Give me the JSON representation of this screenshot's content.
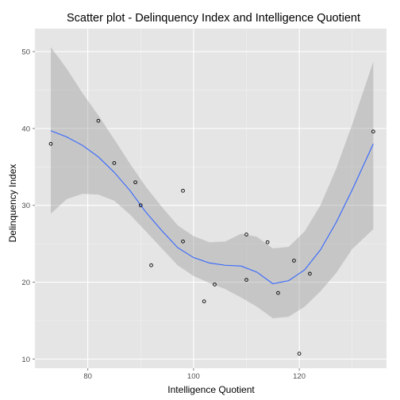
{
  "chart_data": {
    "type": "scatter",
    "title": "Scatter plot - Delinquency Index and Intelligence Quotient",
    "xlabel": "Intelligence Quotient",
    "ylabel": "Delinquency Index",
    "xlim": [
      70,
      136.5
    ],
    "ylim": [
      8.8,
      53
    ],
    "x_ticks": [
      80,
      100,
      120
    ],
    "y_ticks": [
      10,
      20,
      30,
      40,
      50
    ],
    "grid": true,
    "legend": "none",
    "points": [
      {
        "x": 73,
        "y": 38.0
      },
      {
        "x": 82,
        "y": 41.0
      },
      {
        "x": 85,
        "y": 35.5
      },
      {
        "x": 89,
        "y": 33.0
      },
      {
        "x": 90,
        "y": 30.0
      },
      {
        "x": 92,
        "y": 22.2
      },
      {
        "x": 98,
        "y": 31.9
      },
      {
        "x": 98,
        "y": 25.3
      },
      {
        "x": 102,
        "y": 17.5
      },
      {
        "x": 104,
        "y": 19.7
      },
      {
        "x": 110,
        "y": 26.2
      },
      {
        "x": 110,
        "y": 20.3
      },
      {
        "x": 114,
        "y": 25.2
      },
      {
        "x": 116,
        "y": 18.6
      },
      {
        "x": 119,
        "y": 22.8
      },
      {
        "x": 120,
        "y": 10.7
      },
      {
        "x": 122,
        "y": 21.1
      },
      {
        "x": 134,
        "y": 39.6
      }
    ],
    "smooth": {
      "method": "loess",
      "color": "#3366ff",
      "band_color": "#999999",
      "x": [
        73,
        76,
        79,
        82,
        85,
        88,
        91,
        94,
        97,
        100,
        103,
        106,
        109,
        112,
        115,
        118,
        121,
        124,
        127,
        130,
        134
      ],
      "y": [
        39.7,
        38.9,
        37.8,
        36.3,
        34.3,
        31.9,
        29.1,
        26.7,
        24.5,
        23.2,
        22.5,
        22.2,
        22.1,
        21.3,
        19.8,
        20.2,
        21.6,
        24.2,
        27.8,
        32.0,
        38.0
      ],
      "lower": [
        28.9,
        30.8,
        31.5,
        31.4,
        30.6,
        28.8,
        26.6,
        24.4,
        22.2,
        20.8,
        19.9,
        19.1,
        18.0,
        16.8,
        15.3,
        15.5,
        16.8,
        18.8,
        21.2,
        24.3,
        26.9
      ],
      "upper": [
        50.6,
        47.8,
        44.6,
        41.7,
        38.6,
        35.4,
        32.4,
        29.8,
        27.4,
        26.0,
        25.2,
        25.3,
        26.3,
        25.9,
        24.4,
        24.6,
        26.6,
        30.0,
        34.8,
        40.5,
        48.7
      ]
    },
    "colors": {
      "panel": "#e5e5e5",
      "grid_major": "#ffffff",
      "grid_minor": "#f2f2f2",
      "point_stroke": "#000000"
    }
  }
}
